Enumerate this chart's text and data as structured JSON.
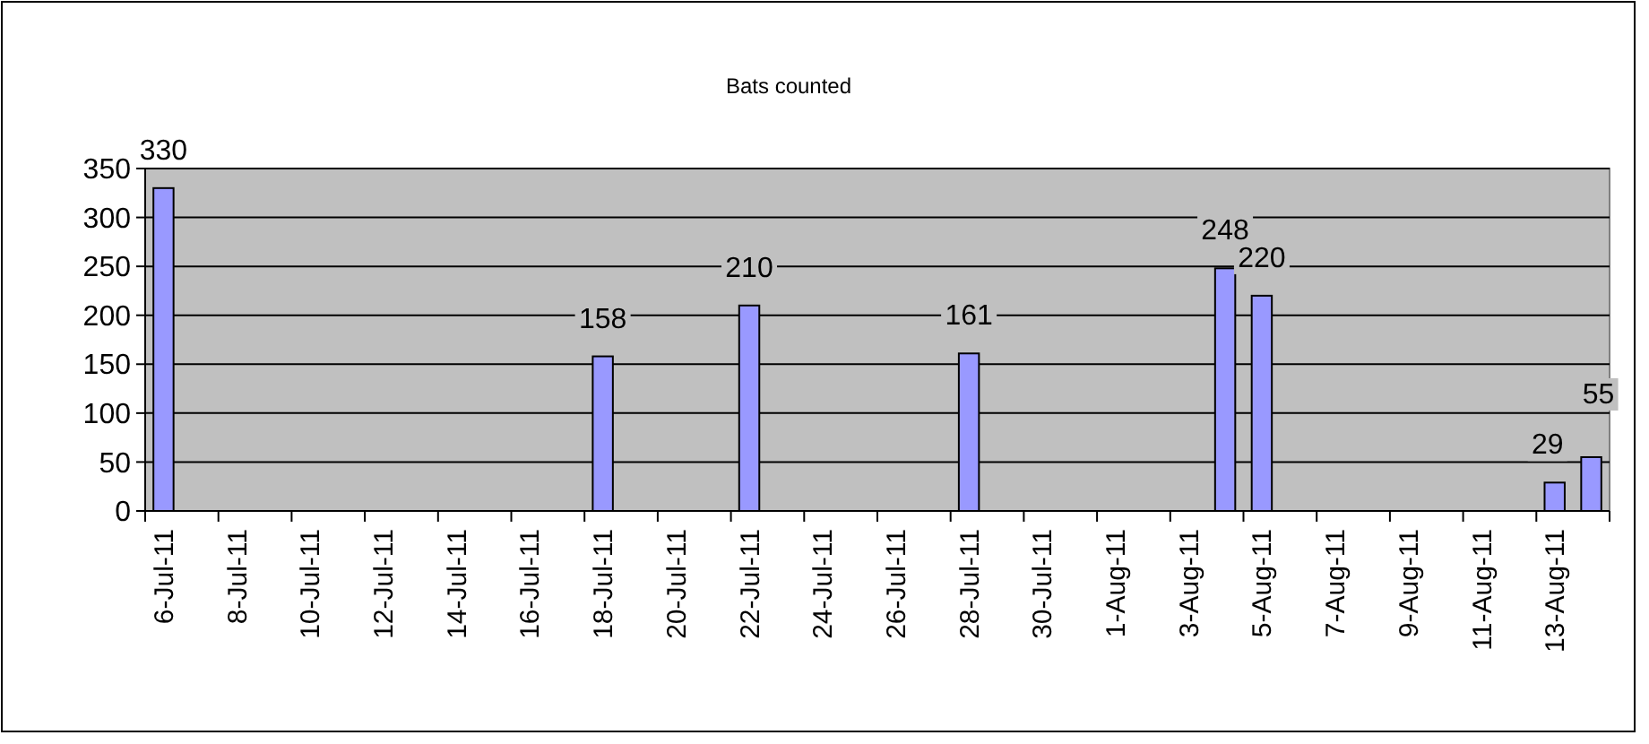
{
  "chart_data": {
    "type": "bar",
    "title": "Bats counted",
    "categories": [
      "6-Jul-11",
      null,
      "8-Jul-11",
      null,
      "10-Jul-11",
      null,
      "12-Jul-11",
      null,
      "14-Jul-11",
      null,
      "16-Jul-11",
      null,
      "18-Jul-11",
      null,
      "20-Jul-11",
      null,
      "22-Jul-11",
      null,
      "24-Jul-11",
      null,
      "26-Jul-11",
      null,
      "28-Jul-11",
      null,
      "30-Jul-11",
      null,
      "1-Aug-11",
      null,
      "3-Aug-11",
      null,
      "5-Aug-11",
      null,
      "7-Aug-11",
      null,
      "9-Aug-11",
      null,
      "11-Aug-11",
      null,
      "13-Aug-11",
      null
    ],
    "values": [
      330,
      null,
      null,
      null,
      null,
      null,
      null,
      null,
      null,
      null,
      null,
      null,
      158,
      null,
      null,
      null,
      210,
      null,
      null,
      null,
      null,
      null,
      161,
      null,
      null,
      null,
      null,
      null,
      null,
      248,
      220,
      null,
      null,
      null,
      null,
      null,
      null,
      null,
      29,
      55
    ],
    "color": "#9999ff",
    "ylim": [
      0,
      350
    ],
    "yticks": [
      0,
      50,
      100,
      150,
      200,
      250,
      300,
      350
    ],
    "grid": "y",
    "data_labels": true
  }
}
